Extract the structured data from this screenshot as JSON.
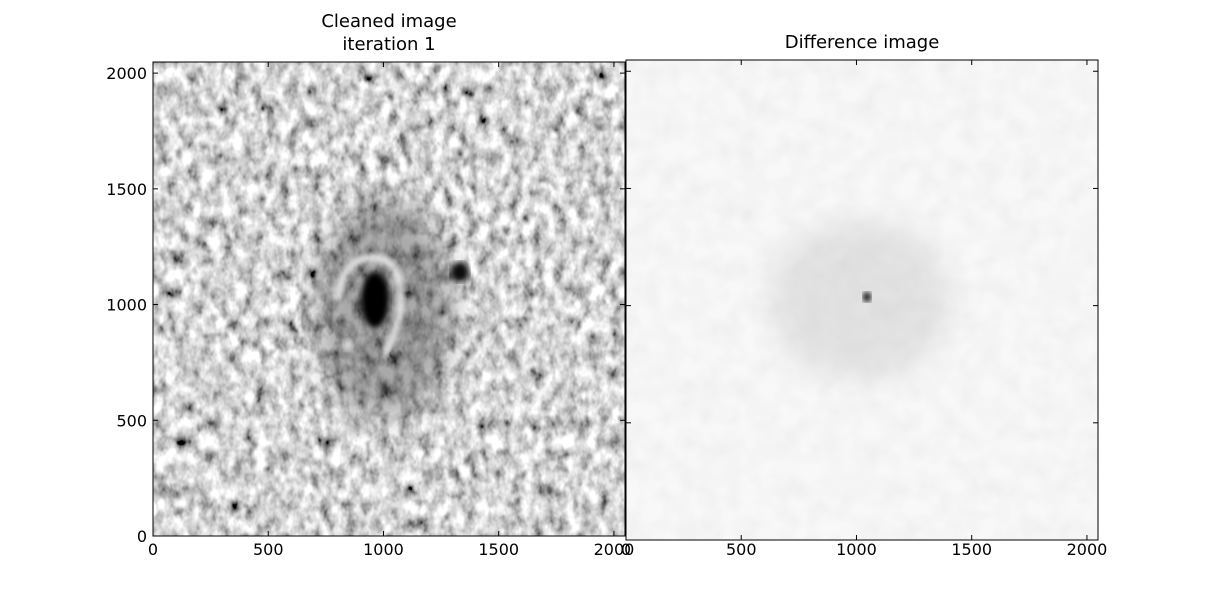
{
  "chart_data": [
    {
      "type": "image",
      "title": "Cleaned image\niteration 1",
      "xlim": [
        0,
        2048
      ],
      "ylim": [
        0,
        2048
      ],
      "xticks": [
        0,
        500,
        1000,
        1500,
        2000
      ],
      "yticks": [
        0,
        500,
        1000,
        1500,
        2000
      ]
    },
    {
      "type": "image",
      "title": "Difference image",
      "xlim": [
        0,
        2048
      ],
      "ylim": [
        0,
        2048
      ],
      "xticks": [
        0,
        500,
        1000,
        1500,
        2000
      ],
      "yticks": [
        0,
        500,
        1000,
        1500,
        2000
      ]
    }
  ]
}
